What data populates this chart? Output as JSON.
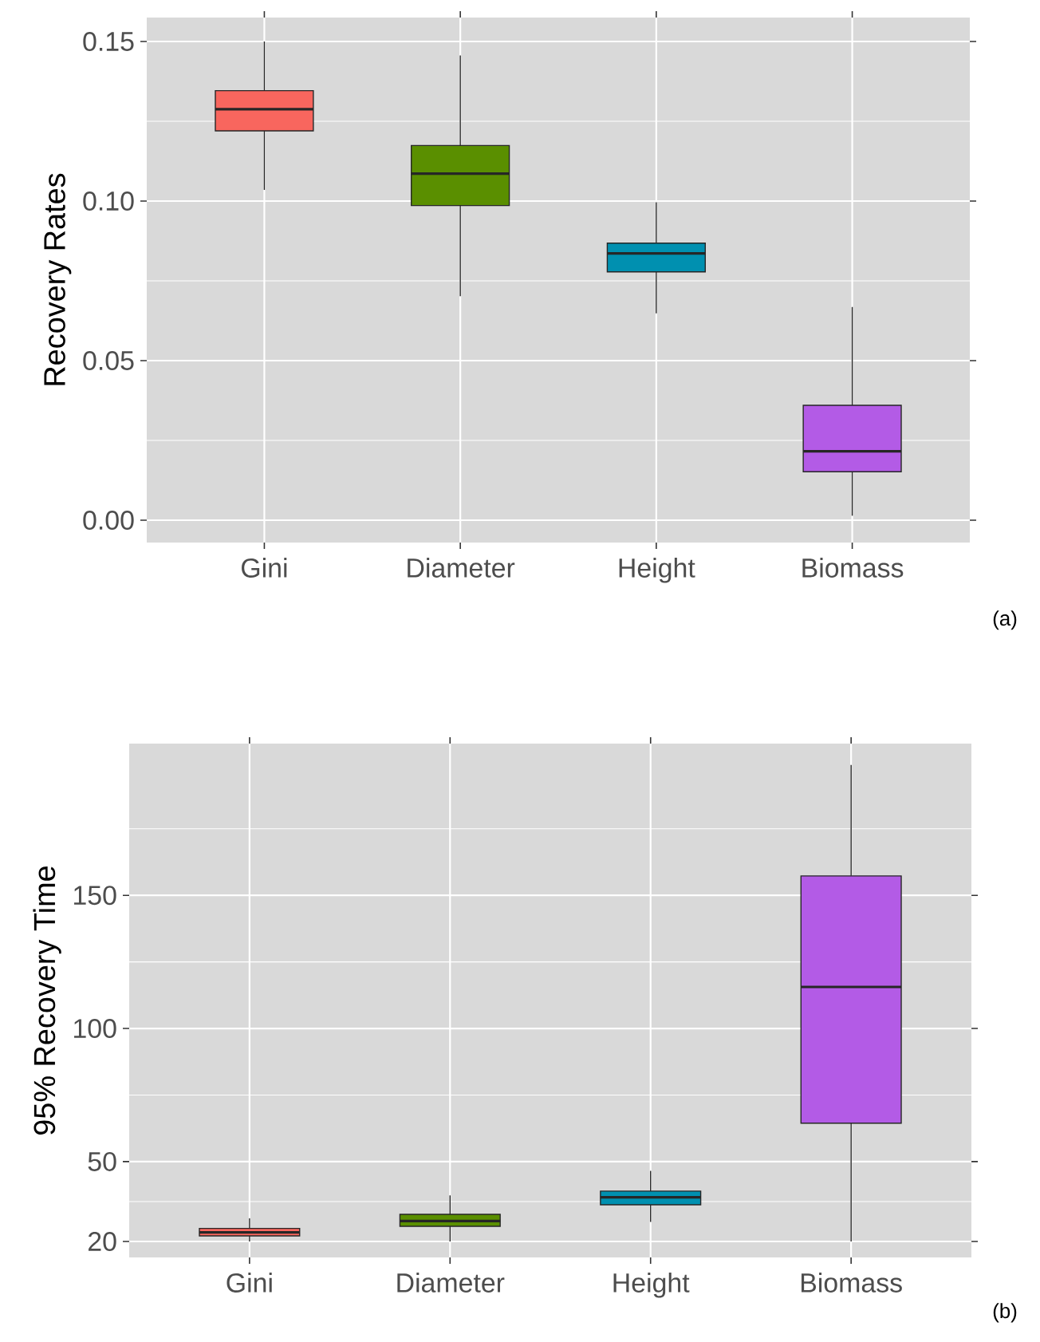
{
  "chart_data": [
    {
      "type": "box",
      "ylabel": "Recovery Rates",
      "categories": [
        "Gini",
        "Diameter",
        "Height",
        "Biomass"
      ],
      "boxes": [
        {
          "low": 0.1035,
          "q1": 0.122,
          "median": 0.1288,
          "q3": 0.1346,
          "high": 0.15
        },
        {
          "low": 0.0702,
          "q1": 0.0986,
          "median": 0.1086,
          "q3": 0.1174,
          "high": 0.1456
        },
        {
          "low": 0.0648,
          "q1": 0.0778,
          "median": 0.0836,
          "q3": 0.0868,
          "high": 0.0996
        },
        {
          "low": 0.0014,
          "q1": 0.0152,
          "median": 0.0216,
          "q3": 0.036,
          "high": 0.0668
        }
      ],
      "colors": [
        "#f8665e",
        "#5a8f00",
        "#0090b0",
        "#b35be6"
      ],
      "ylim": [
        -0.007,
        0.1575
      ],
      "yticks": [
        {
          "value": 0,
          "label": "0.00"
        },
        0.05,
        {
          "value": 0.1,
          "label": "0.10"
        },
        0.15
      ],
      "grid": true,
      "annotations": [
        "(a)"
      ]
    },
    {
      "type": "box",
      "ylabel": "95% Recovery Time",
      "categories": [
        "Gini",
        "Diameter",
        "Height",
        "Biomass"
      ],
      "boxes": [
        {
          "low": 20,
          "q1": 22.1,
          "median": 23.4,
          "q3": 24.9,
          "high": 28.7
        },
        {
          "low": 20,
          "q1": 25.7,
          "median": 27.7,
          "q3": 30.2,
          "high": 37.3
        },
        {
          "low": 27.3,
          "q1": 33.8,
          "median": 36.6,
          "q3": 38.9,
          "high": 46.5
        },
        {
          "low": 20,
          "q1": 64.4,
          "median": 115.6,
          "q3": 157.3,
          "high": 199
        }
      ],
      "colors": [
        "#f8665e",
        "#5a8f00",
        "#0090b0",
        "#b35be6"
      ],
      "ylim": [
        14,
        207
      ],
      "yticks": [
        20,
        50,
        100,
        150
      ],
      "grid": true,
      "annotations": [
        "(b)"
      ]
    }
  ]
}
